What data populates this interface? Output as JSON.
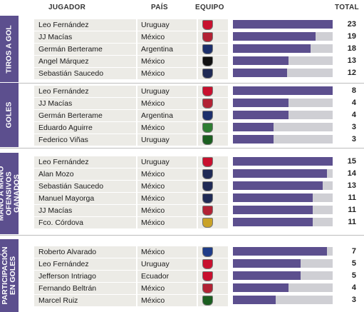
{
  "headers": {
    "player": "JUGADOR",
    "country": "PAÍS",
    "team": "EQUIPO",
    "total": "TOTAL"
  },
  "colors": {
    "accent": "#5c4f8e",
    "track": "#cfcfd4",
    "cell": "#ecebe6"
  },
  "max_total": 23,
  "sections": [
    {
      "label": "TIROS A GOL",
      "rows": [
        {
          "player": "Leo Fernández",
          "country": "Uruguay",
          "team_icon": "toluca-crest-icon",
          "crest_color": "#c8102e",
          "total": "23",
          "value": 23,
          "fill": 1.0
        },
        {
          "player": "JJ Macías",
          "country": "México",
          "team_icon": "chivas-crest-icon",
          "crest_color": "#b22234",
          "total": "19",
          "value": 19,
          "fill": 0.83
        },
        {
          "player": "Germán Berterame",
          "country": "Argentina",
          "team_icon": "monterrey-crest-icon",
          "crest_color": "#1c2f6b",
          "total": "18",
          "value": 18,
          "fill": 0.78
        },
        {
          "player": "Angel Márquez",
          "country": "México",
          "team_icon": "atlas-crest-icon",
          "crest_color": "#111111",
          "total": "13",
          "value": 13,
          "fill": 0.56
        },
        {
          "player": "Sebastián Saucedo",
          "country": "México",
          "team_icon": "pumas-crest-icon",
          "crest_color": "#1f2a55",
          "total": "12",
          "value": 12,
          "fill": 0.54
        }
      ]
    },
    {
      "label": "GOLES",
      "rows": [
        {
          "player": "Leo Fernández",
          "country": "Uruguay",
          "team_icon": "toluca-crest-icon",
          "crest_color": "#c8102e",
          "total": "8",
          "value": 8,
          "fill": 1.0
        },
        {
          "player": "JJ Macías",
          "country": "México",
          "team_icon": "chivas-crest-icon",
          "crest_color": "#b22234",
          "total": "4",
          "value": 4,
          "fill": 0.56
        },
        {
          "player": "Germán Berterame",
          "country": "Argentina",
          "team_icon": "monterrey-crest-icon",
          "crest_color": "#1c2f6b",
          "total": "4",
          "value": 4,
          "fill": 0.56
        },
        {
          "player": "Eduardo Aguirre",
          "country": "México",
          "team_icon": "santos-crest-icon",
          "crest_color": "#2e7d32",
          "total": "3",
          "value": 3,
          "fill": 0.41
        },
        {
          "player": "Federico Viñas",
          "country": "Uruguay",
          "team_icon": "leon-crest-icon",
          "crest_color": "#1b5e20",
          "total": "3",
          "value": 3,
          "fill": 0.41
        }
      ]
    },
    {
      "label": "MANO A MANO OFENSIVOS GANADOS",
      "rows": [
        {
          "player": "Leo Fernández",
          "country": "Uruguay",
          "team_icon": "toluca-crest-icon",
          "crest_color": "#c8102e",
          "total": "15",
          "value": 15,
          "fill": 1.0
        },
        {
          "player": "Alan Mozo",
          "country": "México",
          "team_icon": "pumas-crest-icon",
          "crest_color": "#1f2a55",
          "total": "14",
          "value": 14,
          "fill": 0.94
        },
        {
          "player": "Sebastián Saucedo",
          "country": "México",
          "team_icon": "pumas-crest-icon",
          "crest_color": "#1f2a55",
          "total": "13",
          "value": 13,
          "fill": 0.9
        },
        {
          "player": "Manuel Mayorga",
          "country": "México",
          "team_icon": "pumas-crest-icon",
          "crest_color": "#1f2a55",
          "total": "11",
          "value": 11,
          "fill": 0.8
        },
        {
          "player": "JJ Macías",
          "country": "México",
          "team_icon": "chivas-crest-icon",
          "crest_color": "#b22234",
          "total": "11",
          "value": 11,
          "fill": 0.8
        },
        {
          "player": "Fco. Córdova",
          "country": "México",
          "team_icon": "america-crest-icon",
          "crest_color": "#c9a227",
          "total": "11",
          "value": 11,
          "fill": 0.8
        }
      ]
    },
    {
      "label": "PARTICIPACIÓN EN GOLES",
      "rows": [
        {
          "player": "Roberto Alvarado",
          "country": "México",
          "team_icon": "cruz-azul-crest-icon",
          "crest_color": "#1f3c88",
          "total": "7",
          "value": 7,
          "fill": 0.94
        },
        {
          "player": "Leo Fernández",
          "country": "Uruguay",
          "team_icon": "toluca-crest-icon",
          "crest_color": "#c8102e",
          "total": "5",
          "value": 5,
          "fill": 0.68
        },
        {
          "player": "Jefferson Intriago",
          "country": "Ecuador",
          "team_icon": "juarez-crest-icon",
          "crest_color": "#c8102e",
          "total": "5",
          "value": 5,
          "fill": 0.68
        },
        {
          "player": "Fernando Beltrán",
          "country": "México",
          "team_icon": "chivas-crest-icon",
          "crest_color": "#b22234",
          "total": "4",
          "value": 4,
          "fill": 0.56
        },
        {
          "player": "Marcel Ruiz",
          "country": "México",
          "team_icon": "toluca-crest-icon",
          "crest_color": "#1b5e20",
          "total": "3",
          "value": 3,
          "fill": 0.43
        }
      ]
    }
  ]
}
